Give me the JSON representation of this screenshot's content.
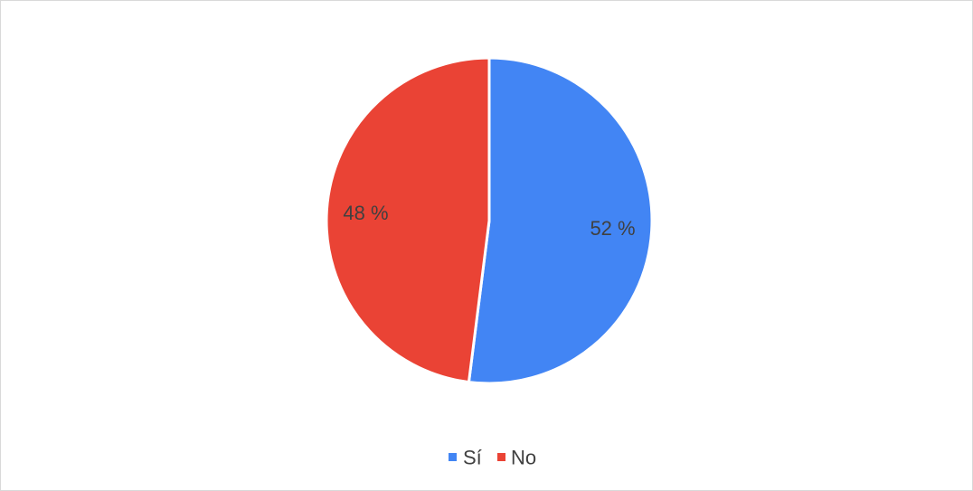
{
  "chart_data": {
    "type": "pie",
    "categories": [
      "Sí",
      "No"
    ],
    "values": [
      52,
      48
    ],
    "data_labels": [
      "52 %",
      "48 %"
    ],
    "colors": [
      "#4285F4",
      "#EA4335"
    ],
    "title": "",
    "legend_position": "bottom"
  }
}
